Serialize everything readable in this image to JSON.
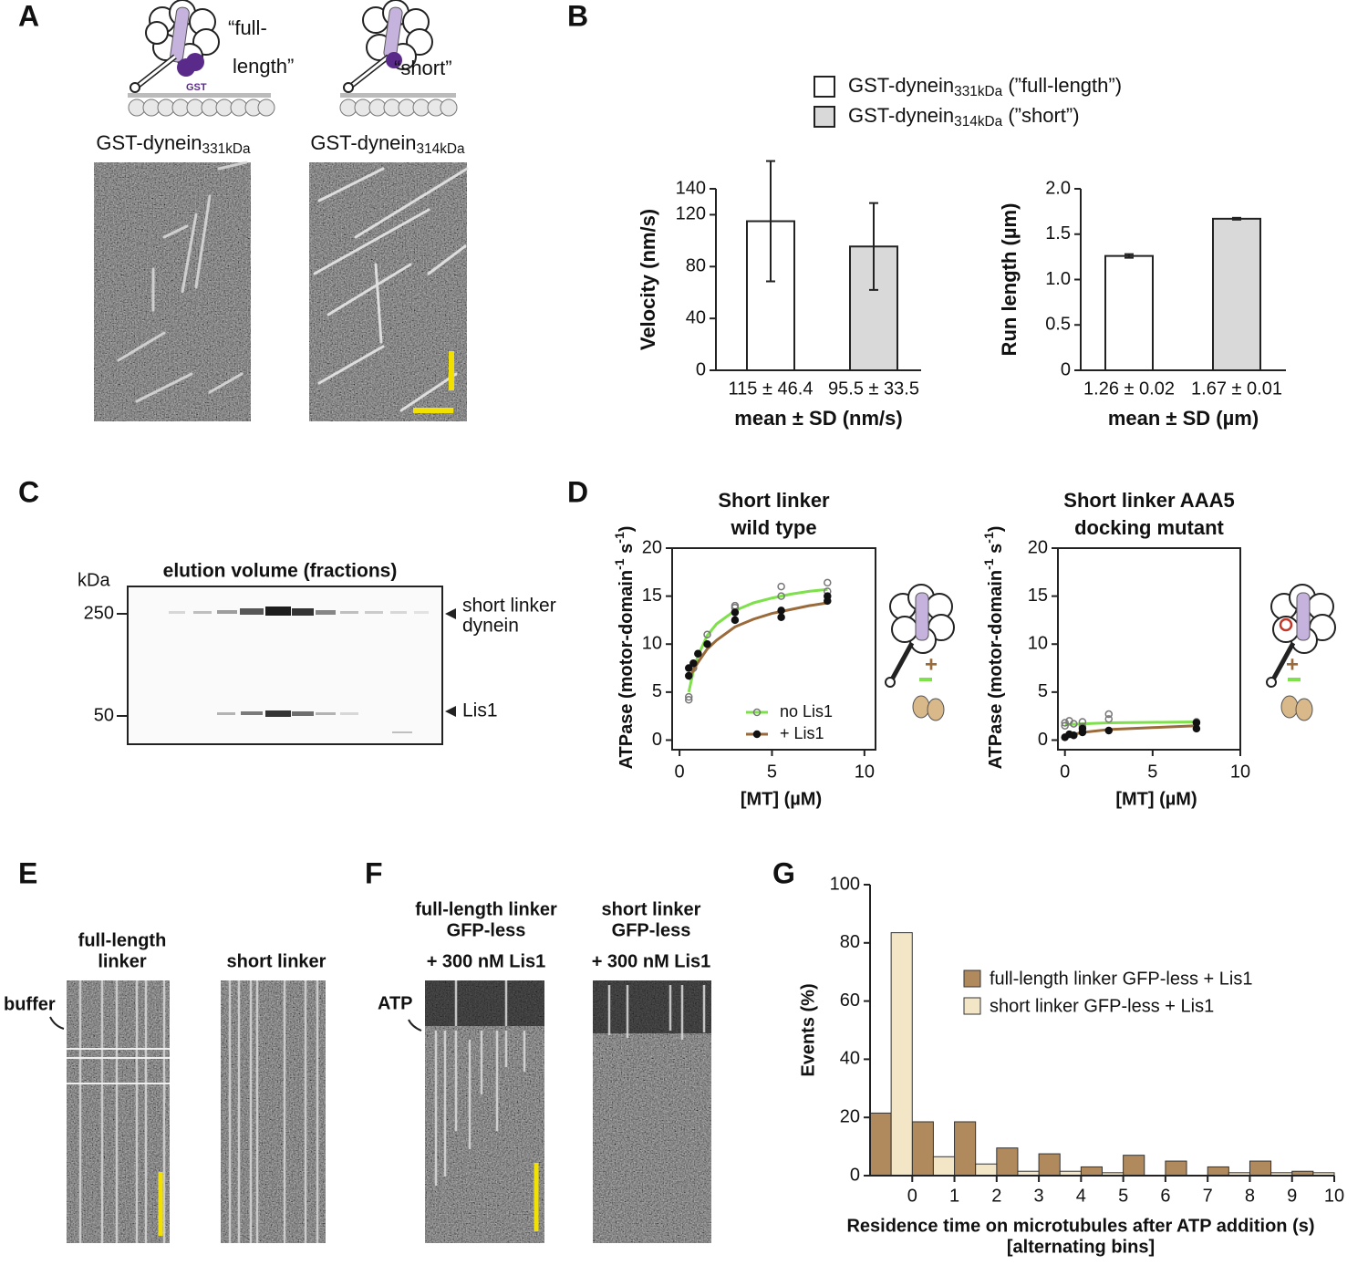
{
  "panel_labels": [
    "A",
    "B",
    "C",
    "D",
    "E",
    "F",
    "G"
  ],
  "panel_a": {
    "cartoon_full": [
      "“full-",
      "length”"
    ],
    "cartoon_gst": "GST",
    "cartoon_short": "“short”",
    "label_full": {
      "text": "GST-dynein",
      "sub": "331kDa"
    },
    "label_short": {
      "text": "GST-dynein",
      "sub": "314kDa"
    }
  },
  "panel_c": {
    "unit": "kDa",
    "markers": [
      250,
      50
    ],
    "title": "elution volume (fractions)",
    "bands": [
      [
        "short linker",
        "dynein"
      ],
      [
        "Lis1"
      ]
    ]
  },
  "panel_e": {
    "labels": [
      [
        "full-length",
        "linker"
      ],
      [
        "short linker"
      ]
    ],
    "buffer": "buffer"
  },
  "panel_f": {
    "labels": [
      [
        "full-length linker",
        "GFP-less",
        "+ 300 nM Lis1"
      ],
      [
        "short linker",
        "GFP-less",
        "+ 300 nM Lis1"
      ]
    ],
    "atp": "ATP"
  },
  "chart_data": [
    {
      "type": "bar",
      "ylabel": "Velocity (nm/s)",
      "xlabel": "mean ± SD (nm/s)",
      "legend": [
        {
          "text": "GST-dynein",
          "sub": "331kDa",
          "suffix": " (”full-length”)"
        },
        {
          "text": "GST-dynein",
          "sub": "314kDa",
          "suffix": " (”short”)"
        }
      ],
      "values": [
        115,
        95.5
      ],
      "errors": [
        46.4,
        33.5
      ],
      "value_labels": [
        "115 ± 46.4",
        "95.5 ± 33.5"
      ],
      "colors": [
        "#ffffff",
        "#d9d9d9"
      ],
      "ylim": [
        0,
        140
      ],
      "yticks": [
        0,
        40,
        80,
        120,
        140
      ]
    },
    {
      "type": "bar",
      "ylabel": "Run length (µm)",
      "xlabel": "mean ± SD (µm)",
      "values": [
        1.26,
        1.67
      ],
      "errors": [
        0.02,
        0.01
      ],
      "value_labels": [
        "1.26 ± 0.02",
        "1.67 ± 0.01"
      ],
      "colors": [
        "#ffffff",
        "#d9d9d9"
      ],
      "ylim": [
        0,
        2
      ],
      "yticks": [
        0,
        0.5,
        {
          "value": 1,
          "label": "1.0"
        },
        1.5,
        {
          "value": 2,
          "label": "2.0"
        }
      ]
    },
    {
      "type": "scatter",
      "title": [
        "Short linker",
        "wild type"
      ],
      "ylabel": [
        "ATPase (motor-domain",
        "-1",
        " s",
        "-1",
        ")"
      ],
      "xlabel": "[MT] (µM)",
      "series": [
        {
          "name": "no Lis1",
          "color": "#7ee04a",
          "x": [
            0.5,
            0.5,
            0.75,
            1,
            1.5,
            3,
            3,
            5.5,
            5.5,
            8,
            8
          ],
          "values": [
            4.2,
            4.5,
            7.5,
            9,
            11,
            13.8,
            14,
            16,
            15,
            16.4,
            15.5
          ],
          "fit_x": [
            0.5,
            0.75,
            1,
            1.5,
            2,
            3,
            4,
            5,
            6,
            7,
            8
          ],
          "fit_values": [
            5.0,
            7.2,
            8.8,
            10.9,
            12.1,
            13.5,
            14.3,
            14.8,
            15.2,
            15.5,
            15.7
          ]
        },
        {
          "name": "+ Lis1",
          "color": "#9a6a3a",
          "x": [
            0.5,
            0.5,
            0.75,
            1,
            1.5,
            3,
            3,
            5.5,
            5.5,
            8,
            8
          ],
          "values": [
            6.7,
            7.5,
            8,
            9,
            10,
            12.5,
            13.3,
            12.8,
            13.5,
            15,
            14.5
          ],
          "fit_x": [
            0.5,
            0.75,
            1,
            1.5,
            2,
            3,
            4,
            5,
            6,
            7,
            8
          ],
          "fit_values": [
            6.3,
            7.3,
            8.1,
            9.5,
            10.4,
            11.8,
            12.6,
            13.2,
            13.6,
            14.0,
            14.3
          ]
        }
      ],
      "xlim": [
        -0.4,
        10.6
      ],
      "xticks": [
        0,
        5,
        10
      ],
      "ylim": [
        -1,
        20
      ],
      "yticks": [
        0,
        5,
        10,
        15,
        20
      ]
    },
    {
      "type": "scatter",
      "title": [
        "Short linker AAA5",
        "docking mutant"
      ],
      "ylabel": [
        "ATPase (motor-domain",
        "-1",
        " s",
        "-1",
        ")"
      ],
      "xlabel": "[MT] (µM)",
      "series": [
        {
          "color": "#7ee04a",
          "x": [
            0,
            0,
            0.25,
            0.5,
            1,
            1,
            2.5,
            2.5,
            7.5
          ],
          "values": [
            1.8,
            1.5,
            2.0,
            1.7,
            1.4,
            1.9,
            2.7,
            2.2,
            1.9
          ],
          "fit_x": [
            0,
            1,
            2.5,
            5,
            7.5
          ],
          "fit_values": [
            1.6,
            1.7,
            1.8,
            1.85,
            1.9
          ]
        },
        {
          "color": "#9a6a3a",
          "x": [
            0,
            0.25,
            0.5,
            1,
            1,
            2.5,
            7.5,
            7.5
          ],
          "values": [
            0.3,
            0.6,
            0.5,
            0.8,
            1.2,
            1.0,
            1.2,
            1.8
          ],
          "fit_x": [
            0,
            0.5,
            1,
            2.5,
            5,
            7.5
          ],
          "fit_values": [
            0.3,
            0.6,
            0.8,
            1.1,
            1.3,
            1.5
          ]
        }
      ],
      "xlim": [
        -0.4,
        10
      ],
      "xticks": [
        0,
        5,
        10
      ],
      "ylim": [
        -1,
        20
      ],
      "yticks": [
        0,
        5,
        10,
        15,
        20
      ]
    },
    {
      "type": "histogram",
      "ylabel": "Events (%)",
      "xlabel": [
        "Residence time on microtubules after ATP addition (s)",
        "[alternating bins]"
      ],
      "bins": [
        -1,
        -0.5,
        0,
        0.5,
        1,
        1.5,
        2,
        2.5,
        3,
        3.5,
        4,
        4.5,
        5,
        5.5,
        6,
        6.5,
        7,
        7.5,
        8,
        8.5,
        9,
        9.5,
        10
      ],
      "series": [
        {
          "name": "full-length linker GFP-less + Lis1",
          "color": "#b08a5c",
          "values": [
            21.5,
            null,
            18.5,
            null,
            18.5,
            null,
            9.5,
            null,
            7.5,
            null,
            3,
            null,
            7,
            null,
            5,
            null,
            3,
            null,
            5,
            null,
            1.5,
            null
          ]
        },
        {
          "name": "short linker GFP-less + Lis1",
          "color": "#f3e6c6",
          "values": [
            null,
            83.5,
            null,
            6.5,
            null,
            4,
            null,
            1.5,
            null,
            1.5,
            null,
            1,
            null,
            0,
            null,
            0,
            null,
            1,
            null,
            1,
            null,
            1
          ]
        }
      ],
      "xlim": [
        -1,
        10
      ],
      "xticks": [
        0,
        1,
        2,
        3,
        4,
        5,
        6,
        7,
        8,
        9,
        10
      ],
      "ylim": [
        0,
        100
      ],
      "yticks": [
        0,
        20,
        40,
        60,
        80,
        100
      ]
    }
  ]
}
